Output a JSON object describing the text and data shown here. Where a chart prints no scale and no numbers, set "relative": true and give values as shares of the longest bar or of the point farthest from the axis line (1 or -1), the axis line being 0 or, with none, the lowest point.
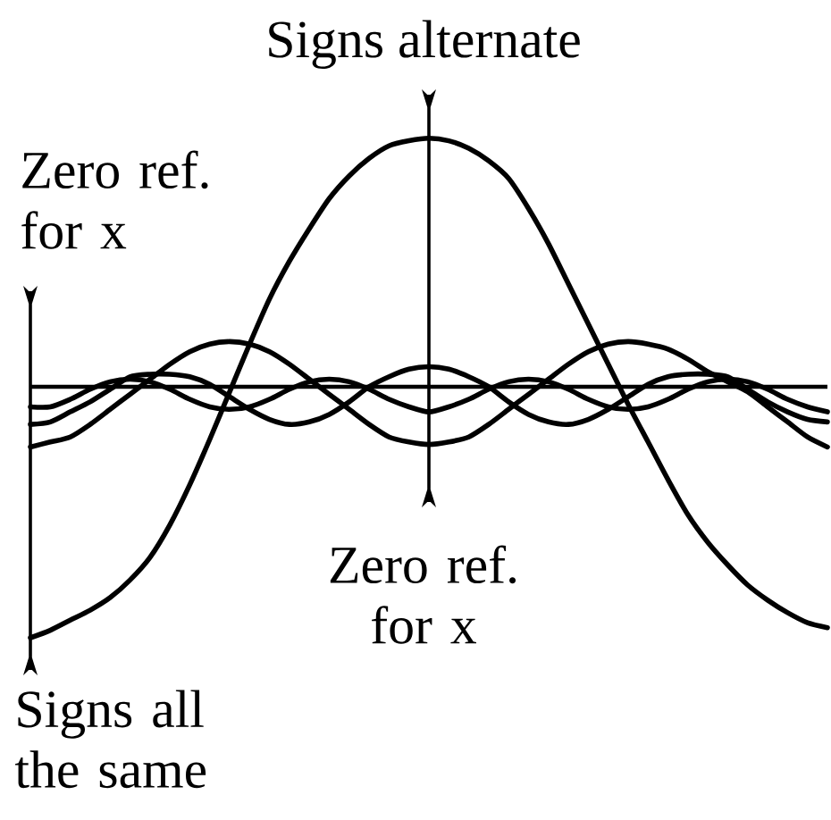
{
  "chart_data": {
    "type": "line",
    "relative": true,
    "line_style": "solid",
    "categories": [
      null,
      null,
      null,
      null,
      null,
      null,
      null,
      null,
      null,
      null,
      null,
      null,
      null,
      null,
      null,
      null,
      null,
      null,
      null,
      null,
      null,
      null,
      null,
      null,
      null,
      null,
      null,
      null,
      null,
      null,
      null,
      null,
      null,
      null,
      null,
      null,
      null,
      null,
      null,
      null,
      null
    ],
    "series": [
      {
        "color": "#000000",
        "values": [
          -1.0,
          -0.97,
          -0.93,
          -0.89,
          -0.84,
          -0.77,
          -0.68,
          -0.55,
          -0.39,
          -0.21,
          -0.02,
          0.17,
          0.35,
          0.5,
          0.63,
          0.75,
          0.84,
          0.91,
          0.96,
          0.98,
          0.99,
          0.98,
          0.95,
          0.9,
          0.83,
          0.71,
          0.57,
          0.41,
          0.25,
          0.09,
          -0.07,
          -0.22,
          -0.37,
          -0.51,
          -0.62,
          -0.71,
          -0.79,
          -0.85,
          -0.9,
          -0.94,
          -0.96
        ]
      },
      {
        "color": "#000000",
        "values": [
          -0.24,
          -0.22,
          -0.2,
          -0.15,
          -0.09,
          -0.03,
          0.03,
          0.09,
          0.14,
          0.17,
          0.18,
          0.17,
          0.14,
          0.09,
          0.03,
          -0.03,
          -0.09,
          -0.15,
          -0.2,
          -0.22,
          -0.23,
          -0.22,
          -0.2,
          -0.15,
          -0.09,
          -0.03,
          0.03,
          0.09,
          0.14,
          0.17,
          0.18,
          0.17,
          0.15,
          0.11,
          0.06,
          0.02,
          -0.02,
          -0.08,
          -0.14,
          -0.2,
          -0.24
        ]
      },
      {
        "color": "#000000",
        "values": [
          -0.15,
          -0.14,
          -0.1,
          -0.06,
          -0.01,
          0.04,
          0.05,
          0.05,
          0.04,
          0.01,
          -0.04,
          -0.09,
          -0.13,
          -0.15,
          -0.14,
          -0.11,
          -0.06,
          0.0,
          0.04,
          0.07,
          0.08,
          0.07,
          0.04,
          0.0,
          -0.06,
          -0.11,
          -0.14,
          -0.15,
          -0.13,
          -0.09,
          -0.04,
          0.01,
          0.04,
          0.05,
          0.05,
          0.04,
          -0.01,
          -0.06,
          -0.1,
          -0.13,
          -0.14
        ]
      },
      {
        "color": "#000000",
        "values": [
          -0.08,
          -0.08,
          -0.05,
          -0.01,
          0.02,
          0.03,
          0.02,
          -0.01,
          -0.05,
          -0.08,
          -0.09,
          -0.08,
          -0.05,
          -0.01,
          0.02,
          0.03,
          0.02,
          -0.01,
          -0.05,
          -0.08,
          -0.1,
          -0.08,
          -0.05,
          -0.01,
          0.02,
          0.03,
          0.02,
          -0.01,
          -0.05,
          -0.08,
          -0.09,
          -0.08,
          -0.05,
          -0.01,
          0.02,
          0.03,
          0.02,
          -0.01,
          -0.05,
          -0.08,
          -0.1
        ]
      }
    ],
    "annotations": [
      "Signs alternate",
      "Zero ref. for x",
      "Zero ref. for x",
      "Signs all the same"
    ]
  }
}
